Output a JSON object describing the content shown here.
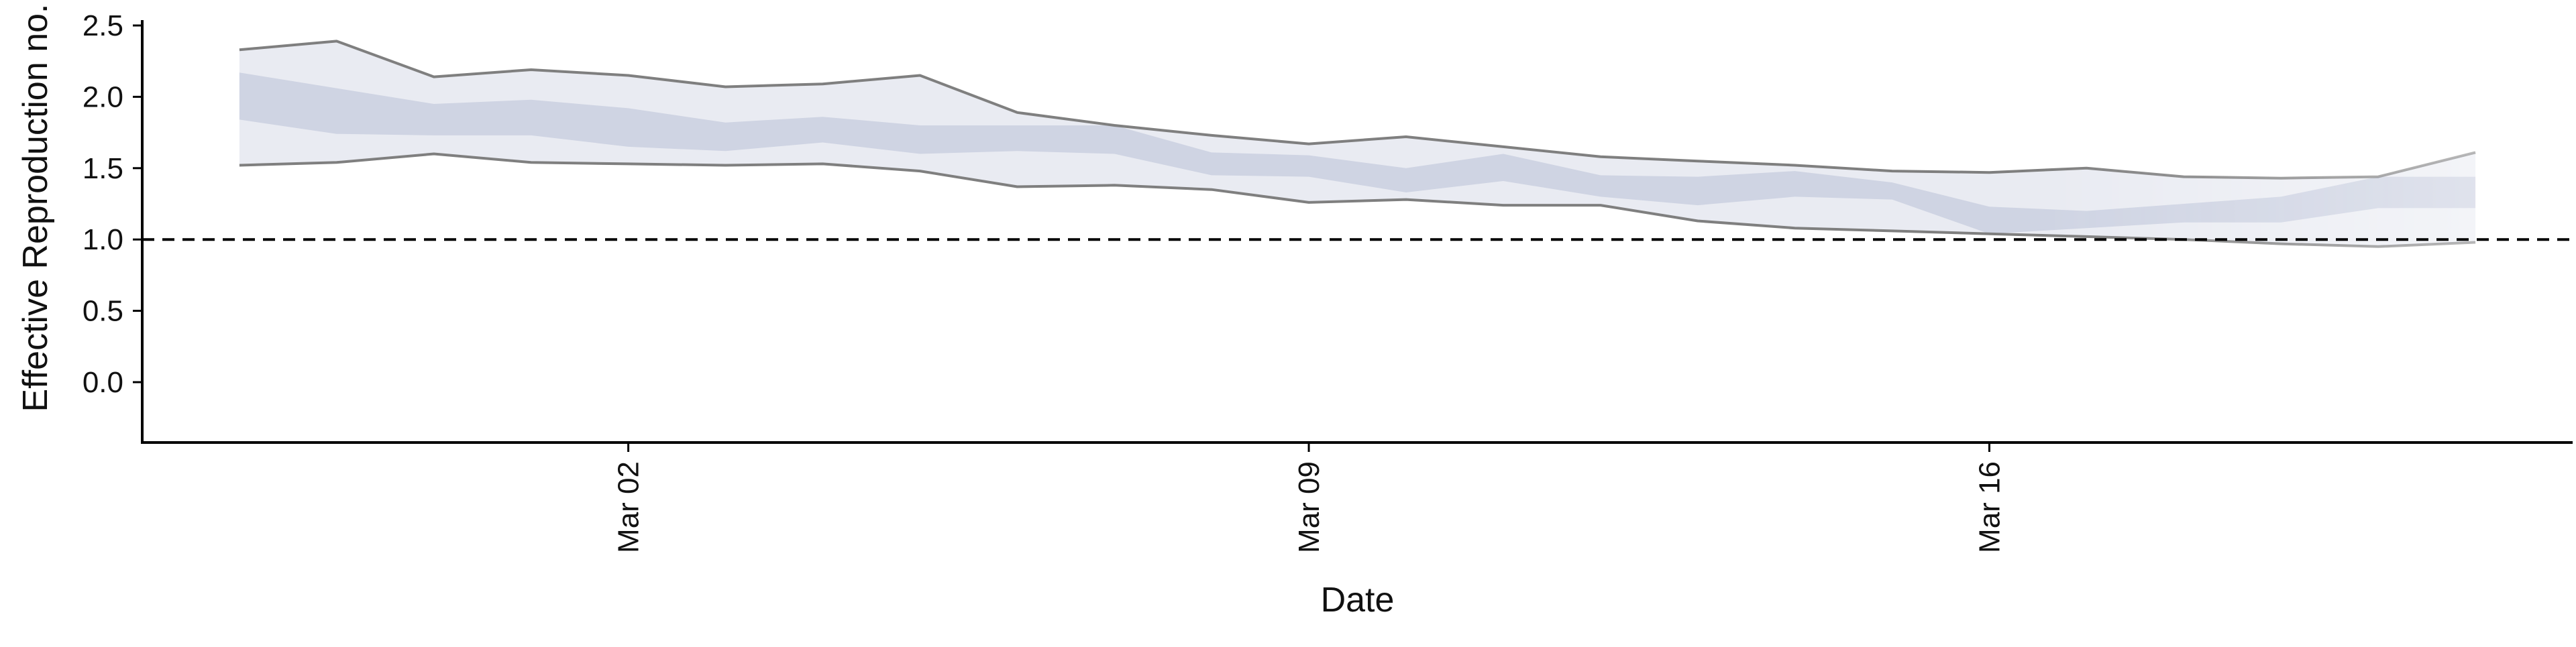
{
  "chart_data": {
    "type": "area",
    "title": "",
    "xlabel": "Date",
    "ylabel": "Effective Reproduction no.",
    "ylim": [
      0,
      2.5
    ],
    "yticks": [
      0.0,
      0.5,
      1.0,
      1.5,
      2.0,
      2.5
    ],
    "ytick_labels": [
      "0.0",
      "0.5",
      "1.0",
      "1.5",
      "2.0",
      "2.5"
    ],
    "xlim": [
      "2020-02-26",
      "2020-03-22"
    ],
    "xticks": [
      "2020-03-02",
      "2020-03-09",
      "2020-03-16"
    ],
    "xtick_labels": [
      "Mar 02",
      "Mar 09",
      "Mar 16"
    ],
    "reference_line": {
      "y": 1.0,
      "style": "dashed"
    },
    "grid": false,
    "legend": "none",
    "dates": [
      "2020-02-27",
      "2020-02-28",
      "2020-02-29",
      "2020-03-01",
      "2020-03-02",
      "2020-03-03",
      "2020-03-04",
      "2020-03-05",
      "2020-03-06",
      "2020-03-07",
      "2020-03-08",
      "2020-03-09",
      "2020-03-10",
      "2020-03-11",
      "2020-03-12",
      "2020-03-13",
      "2020-03-14",
      "2020-03-15",
      "2020-03-16",
      "2020-03-17",
      "2020-03-18",
      "2020-03-19",
      "2020-03-20",
      "2020-03-21"
    ],
    "series": [
      {
        "band": "outer_interval",
        "lower": [
          1.52,
          1.54,
          1.6,
          1.54,
          1.53,
          1.52,
          1.53,
          1.48,
          1.37,
          1.38,
          1.35,
          1.26,
          1.28,
          1.24,
          1.24,
          1.13,
          1.08,
          1.06,
          1.04,
          1.02,
          1.0,
          0.97,
          0.95,
          0.98
        ],
        "upper": [
          2.33,
          2.39,
          2.14,
          2.19,
          2.15,
          2.07,
          2.09,
          2.15,
          1.89,
          1.8,
          1.73,
          1.67,
          1.72,
          1.65,
          1.58,
          1.55,
          1.52,
          1.48,
          1.47,
          1.5,
          1.44,
          1.43,
          1.44,
          1.61
        ]
      },
      {
        "band": "inner_interval",
        "lower": [
          1.84,
          1.74,
          1.73,
          1.73,
          1.65,
          1.62,
          1.68,
          1.6,
          1.62,
          1.6,
          1.45,
          1.44,
          1.33,
          1.41,
          1.3,
          1.24,
          1.3,
          1.28,
          1.04,
          1.08,
          1.12,
          1.12,
          1.22,
          1.22
        ],
        "upper": [
          2.17,
          2.06,
          1.95,
          1.98,
          1.92,
          1.82,
          1.86,
          1.8,
          1.8,
          1.8,
          1.61,
          1.59,
          1.5,
          1.6,
          1.45,
          1.44,
          1.48,
          1.4,
          1.23,
          1.2,
          1.25,
          1.3,
          1.44,
          1.44
        ]
      }
    ],
    "colors": {
      "outer_fill": "#e9ebf2",
      "inner_fill": "#cfd4e3",
      "bound_line": "#7f7f7f",
      "reference_line": "#000000",
      "axis": "#000000"
    }
  }
}
